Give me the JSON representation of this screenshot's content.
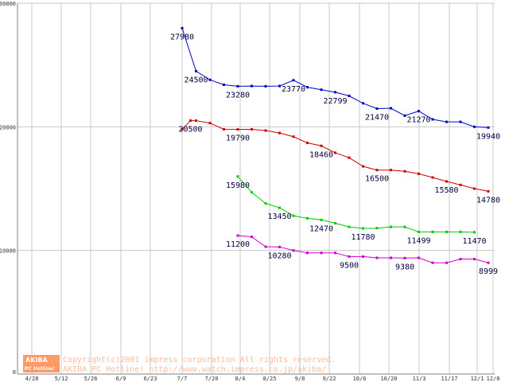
{
  "chart_data": {
    "type": "line",
    "categories": [
      "4/28",
      "5/12",
      "5/26",
      "6/9",
      "6/23",
      "7/7",
      "7/20",
      "8/4",
      "8/25",
      "9/8",
      "9/22",
      "10/6",
      "10/20",
      "11/3",
      "11/17",
      "12/1",
      "12/8"
    ],
    "ylim": [
      0,
      30000
    ],
    "yticks": [
      "0",
      "10000",
      "20000",
      "30000"
    ],
    "grid": true,
    "series": [
      {
        "color": "#0000cc",
        "points": [
          [
            0,
            27980
          ],
          [
            1,
            24500
          ],
          [
            2,
            23800
          ],
          [
            3,
            23400
          ],
          [
            4,
            23280
          ],
          [
            5,
            23300
          ],
          [
            6,
            23280
          ],
          [
            7,
            23300
          ],
          [
            8,
            23770
          ],
          [
            9,
            23200
          ],
          [
            10,
            23000
          ],
          [
            11,
            22799
          ],
          [
            12,
            22500
          ],
          [
            13,
            21900
          ],
          [
            14,
            21470
          ],
          [
            15,
            21500
          ],
          [
            16,
            20900
          ],
          [
            17,
            21270
          ],
          [
            18,
            20600
          ],
          [
            19,
            20400
          ],
          [
            20,
            20400
          ],
          [
            21,
            20000
          ],
          [
            22,
            19940
          ]
        ],
        "labels": [
          [
            0,
            "27980"
          ],
          [
            1,
            "24500"
          ],
          [
            4,
            "23280"
          ],
          [
            8,
            "23770"
          ],
          [
            11,
            "22799"
          ],
          [
            14,
            "21470"
          ],
          [
            17,
            "21270"
          ],
          [
            22,
            "19940"
          ]
        ]
      },
      {
        "color": "#cc0000",
        "points": [
          [
            0,
            19800
          ],
          [
            0.6,
            20500
          ],
          [
            1,
            20500
          ],
          [
            2,
            20300
          ],
          [
            3,
            19800
          ],
          [
            4,
            19790
          ],
          [
            5,
            19800
          ],
          [
            6,
            19700
          ],
          [
            7,
            19500
          ],
          [
            8,
            19200
          ],
          [
            9,
            18700
          ],
          [
            10,
            18460
          ],
          [
            11,
            17900
          ],
          [
            12,
            17500
          ],
          [
            13,
            16800
          ],
          [
            14,
            16500
          ],
          [
            15,
            16500
          ],
          [
            16,
            16400
          ],
          [
            17,
            16200
          ],
          [
            18,
            15900
          ],
          [
            19,
            15580
          ],
          [
            20,
            15300
          ],
          [
            21,
            15000
          ],
          [
            22,
            14780
          ]
        ],
        "labels": [
          [
            0.6,
            "20500"
          ],
          [
            4,
            "19790"
          ],
          [
            10,
            "18460"
          ],
          [
            14,
            "16500"
          ],
          [
            19,
            "15580"
          ],
          [
            22,
            "14780"
          ]
        ]
      },
      {
        "color": "#00cc00",
        "points": [
          [
            4,
            15980
          ],
          [
            5,
            14700
          ],
          [
            6,
            13800
          ],
          [
            7,
            13450
          ],
          [
            8,
            12800
          ],
          [
            9,
            12600
          ],
          [
            10,
            12470
          ],
          [
            11,
            12200
          ],
          [
            12,
            11900
          ],
          [
            13,
            11780
          ],
          [
            14,
            11800
          ],
          [
            15,
            11900
          ],
          [
            16,
            11900
          ],
          [
            17,
            11499
          ],
          [
            18,
            11500
          ],
          [
            19,
            11500
          ],
          [
            20,
            11500
          ],
          [
            21,
            11470
          ]
        ],
        "labels": [
          [
            4,
            "15980"
          ],
          [
            7,
            "13450"
          ],
          [
            10,
            "12470"
          ],
          [
            13,
            "11780"
          ],
          [
            17,
            "11499"
          ],
          [
            21,
            "11470"
          ]
        ]
      },
      {
        "color": "#cc00cc",
        "points": [
          [
            4,
            11200
          ],
          [
            5,
            11100
          ],
          [
            6,
            10300
          ],
          [
            7,
            10280
          ],
          [
            8,
            10000
          ],
          [
            9,
            9800
          ],
          [
            10,
            9800
          ],
          [
            11,
            9800
          ],
          [
            12,
            9500
          ],
          [
            13,
            9500
          ],
          [
            14,
            9400
          ],
          [
            15,
            9400
          ],
          [
            16,
            9380
          ],
          [
            17,
            9400
          ],
          [
            18,
            9000
          ],
          [
            19,
            9000
          ],
          [
            20,
            9300
          ],
          [
            21,
            9300
          ],
          [
            22,
            8999
          ]
        ],
        "labels": [
          [
            4,
            "11200"
          ],
          [
            7,
            "10280"
          ],
          [
            12,
            "9500"
          ],
          [
            16,
            "9380"
          ],
          [
            22,
            "8999"
          ]
        ]
      }
    ]
  },
  "watermark": {
    "logo_top": "AKIBA",
    "logo_bottom": "PC Hotline!",
    "line1": "Copyright(c)2001 impress corporation All rights reserved.",
    "line2": "AKIBA PC Hotline!  http://www.watch.impress.co.jp/akiba/"
  }
}
